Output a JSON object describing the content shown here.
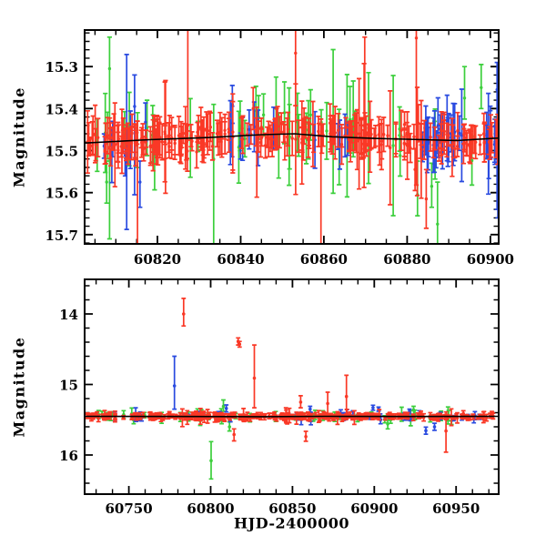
{
  "figure": {
    "background": "#ffffff"
  },
  "colors": {
    "red": "#fa3826",
    "green": "#3ccf3c",
    "blue": "#2a4be0",
    "mean_line": "#000000",
    "frame": "#000000"
  },
  "chart_data": [
    {
      "type": "scatter",
      "name": "top-panel",
      "title": "",
      "xlabel": "",
      "ylabel": "Magnitude",
      "xlim": [
        60802.5,
        60902.0
      ],
      "ylim": [
        15.213,
        15.722
      ],
      "y_axis_inverted_magnitude": true,
      "grid": false,
      "legend": "none",
      "x_ticks": [
        60820,
        60840,
        60860,
        60880,
        60900
      ],
      "x_tick_labels": [
        "60820",
        "60840",
        "60860",
        "60880",
        "60900"
      ],
      "x_minor_step": 5,
      "y_ticks": [
        15.3,
        15.4,
        15.5,
        15.6,
        15.7
      ],
      "y_tick_labels": [
        "15.3",
        "15.4",
        "15.5",
        "15.6",
        "15.7"
      ],
      "y_minor_step": 0.02,
      "mean_line": [
        [
          60802.5,
          15.482
        ],
        [
          60818,
          15.474
        ],
        [
          60832,
          15.469
        ],
        [
          60845,
          15.462
        ],
        [
          60853,
          15.46
        ],
        [
          60862,
          15.467
        ],
        [
          60872,
          15.471
        ],
        [
          60884,
          15.474
        ],
        [
          60892,
          15.476
        ],
        [
          60902,
          15.47
        ]
      ],
      "seed": 11,
      "series": [
        {
          "name": "green-band",
          "color_key": "green",
          "sigma": 0.03,
          "err": [
            0.03,
            0.095
          ],
          "x_clumps": [
            [
              60803,
              60902,
              40
            ]
          ],
          "outliers": [
            [
              60808.5,
              15.305,
              0.075,
              0.405
            ],
            [
              60807.8,
              15.575,
              0.05,
              0.05
            ],
            [
              60833.5,
              15.52,
              0.13,
              0.3
            ],
            [
              60845.5,
              15.415,
              0.05,
              0.05
            ],
            [
              60848.5,
              15.4,
              0.075,
              0.06
            ],
            [
              60856.8,
              15.415,
              0.06,
              0.06
            ],
            [
              60882.5,
              15.605,
              0.08,
              0.05
            ],
            [
              60885.9,
              15.585,
              0.055,
              0.05
            ],
            [
              60887.3,
              15.675,
              0.1,
              0.07
            ],
            [
              60893.8,
              15.375,
              0.075,
              0.05
            ],
            [
              60897.8,
              15.35,
              0.055,
              0.05
            ]
          ]
        },
        {
          "name": "blue-band",
          "color_key": "blue",
          "sigma": 0.018,
          "err": [
            0.025,
            0.07
          ],
          "x_clumps": [
            [
              60806,
              60818,
              7
            ],
            [
              60836,
              60848,
              8
            ],
            [
              60857,
              60866,
              5
            ],
            [
              60883.5,
              60893.5,
              26
            ],
            [
              60899,
              60902,
              10
            ]
          ],
          "outliers": [
            [
              60814.5,
              15.395,
              0.075,
              0.21
            ],
            [
              60815.8,
              15.575,
              0.05,
              0.06
            ],
            [
              60838.0,
              15.39,
              0.045,
              0.045
            ],
            [
              60901.6,
              15.355,
              0.065,
              0.285
            ],
            [
              60902.0,
              15.47,
              0.1,
              0.17
            ],
            [
              60901.8,
              15.6,
              0.06,
              0.06
            ]
          ]
        },
        {
          "name": "red-band",
          "color_key": "red",
          "sigma": 0.013,
          "err": [
            0.02,
            0.05
          ],
          "x_clumps": [
            [
              60803,
              60902,
              265
            ]
          ],
          "outliers": [
            [
              60815.2,
              15.475,
              0.045,
              0.3
            ],
            [
              60827.3,
              15.44,
              0.3,
              0.035
            ],
            [
              60843.0,
              15.4,
              0.05,
              0.05
            ],
            [
              60853.2,
              15.268,
              0.07,
              0.125
            ],
            [
              60859.3,
              15.465,
              0.04,
              0.32
            ],
            [
              60869.8,
              15.455,
              0.225,
              0.05
            ],
            [
              60881.9,
              15.545,
              0.05,
              0.05
            ],
            [
              60882.2,
              15.232,
              0.12,
              0.35
            ],
            [
              60884.6,
              15.615,
              0.07,
              0.07
            ]
          ]
        }
      ]
    },
    {
      "type": "scatter",
      "name": "bottom-panel",
      "title": "",
      "xlabel": "HJD-2400000",
      "ylabel": "Magnitude",
      "xlim": [
        60723.0,
        60976.0
      ],
      "ylim": [
        13.51,
        16.555
      ],
      "y_axis_inverted_magnitude": true,
      "grid": false,
      "legend": "none",
      "x_ticks": [
        60750,
        60800,
        60850,
        60900,
        60950
      ],
      "x_tick_labels": [
        "60750",
        "60800",
        "60850",
        "60900",
        "60950"
      ],
      "x_minor_step": 10,
      "y_ticks": [
        14,
        15,
        16
      ],
      "y_tick_labels": [
        "14",
        "15",
        "16"
      ],
      "y_minor_step": 0.2,
      "mean_line": [
        [
          60723,
          15.452
        ],
        [
          60790,
          15.455
        ],
        [
          60830,
          15.457
        ],
        [
          60870,
          15.452
        ],
        [
          60920,
          15.454
        ],
        [
          60976,
          15.452
        ]
      ],
      "seed": 22,
      "series": [
        {
          "name": "green-band",
          "color_key": "green",
          "sigma": 0.028,
          "err": [
            0.03,
            0.08
          ],
          "x_clumps": [
            [
              60727,
              60970,
              48
            ]
          ],
          "outliers": [
            [
              60800.3,
              16.08,
              0.27,
              0.26
            ],
            [
              60807.8,
              15.31,
              0.09,
              0.07
            ],
            [
              60811.5,
              15.6,
              0.07,
              0.06
            ],
            [
              60908.2,
              15.56,
              0.09,
              0.07
            ],
            [
              60910.0,
              15.5,
              0.05,
              0.05
            ],
            [
              60924.0,
              15.36,
              0.05,
              0.09
            ],
            [
              60934.2,
              15.49,
              0.04,
              0.04
            ]
          ]
        },
        {
          "name": "blue-band",
          "color_key": "blue",
          "sigma": 0.022,
          "err": [
            0.025,
            0.06
          ],
          "x_clumps": [
            [
              60740,
              60762,
              6
            ],
            [
              60775,
              60815,
              8
            ],
            [
              60845,
              60906,
              16
            ],
            [
              60914,
              60970,
              12
            ]
          ],
          "outliers": [
            [
              60777.9,
              15.02,
              0.42,
              0.33
            ],
            [
              60809.6,
              15.34,
              0.05,
              0.05
            ],
            [
              60860.8,
              15.35,
              0.04,
              0.04
            ],
            [
              60899.2,
              15.33,
              0.035,
              0.035
            ],
            [
              60902.6,
              15.35,
              0.03,
              0.03
            ],
            [
              60921.5,
              15.38,
              0.03,
              0.03
            ],
            [
              60931.5,
              15.655,
              0.05,
              0.05
            ],
            [
              60936.8,
              15.6,
              0.05,
              0.05
            ]
          ]
        },
        {
          "name": "red-band",
          "color_key": "red",
          "sigma": 0.016,
          "err": [
            0.018,
            0.04
          ],
          "x_clumps": [
            [
              60724,
              60790,
              75
            ],
            [
              60790,
              60902,
              165
            ],
            [
              60902,
              60973,
              75
            ]
          ],
          "outliers": [
            [
              60783.5,
              14.0,
              0.22,
              0.17
            ],
            [
              60816.8,
              14.39,
              0.05,
              0.05
            ],
            [
              60817.7,
              14.43,
              0.04,
              0.04
            ],
            [
              60826.7,
              14.91,
              0.47,
              0.42
            ],
            [
              60814.3,
              15.71,
              0.08,
              0.09
            ],
            [
              60855.0,
              15.25,
              0.09,
              0.08
            ],
            [
              60858.2,
              15.74,
              0.075,
              0.065
            ],
            [
              60871.5,
              15.27,
              0.16,
              0.14
            ],
            [
              60883.0,
              15.17,
              0.3,
              0.26
            ],
            [
              60943.8,
              15.66,
              0.27,
              0.3
            ]
          ]
        }
      ]
    }
  ]
}
